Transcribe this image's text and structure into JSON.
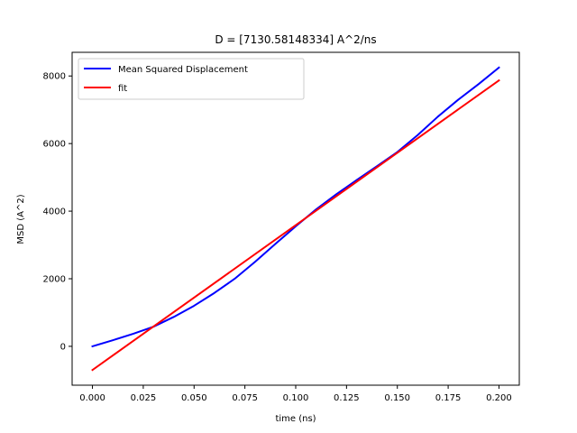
{
  "chart_data": {
    "type": "line",
    "title": "D = [7130.58148334] A^2/ns",
    "xlabel": "time (ns)",
    "ylabel": "MSD (A^2)",
    "xlim": [
      -0.01,
      0.21
    ],
    "ylim": [
      -1150,
      8700
    ],
    "xticks": [
      0.0,
      0.025,
      0.05,
      0.075,
      0.1,
      0.125,
      0.15,
      0.175,
      0.2
    ],
    "xtick_labels": [
      "0.000",
      "0.025",
      "0.050",
      "0.075",
      "0.100",
      "0.125",
      "0.150",
      "0.175",
      "0.200"
    ],
    "yticks": [
      0,
      2000,
      4000,
      6000,
      8000
    ],
    "ytick_labels": [
      "0",
      "2000",
      "4000",
      "6000",
      "8000"
    ],
    "grid": false,
    "legend": "top-left",
    "series": [
      {
        "name": "Mean Squared Displacement",
        "color": "#0000ff",
        "x": [
          0.0,
          0.01,
          0.02,
          0.03,
          0.04,
          0.05,
          0.06,
          0.07,
          0.08,
          0.09,
          0.1,
          0.11,
          0.12,
          0.13,
          0.14,
          0.15,
          0.16,
          0.17,
          0.18,
          0.19,
          0.2
        ],
        "y": [
          0,
          180,
          370,
          580,
          870,
          1200,
          1580,
          2000,
          2500,
          3030,
          3550,
          4050,
          4500,
          4920,
          5330,
          5750,
          6250,
          6800,
          7300,
          7760,
          8250
        ]
      },
      {
        "name": "fit",
        "color": "#ff0000",
        "x": [
          0.0,
          0.2
        ],
        "y": [
          -700,
          7870
        ]
      }
    ]
  }
}
